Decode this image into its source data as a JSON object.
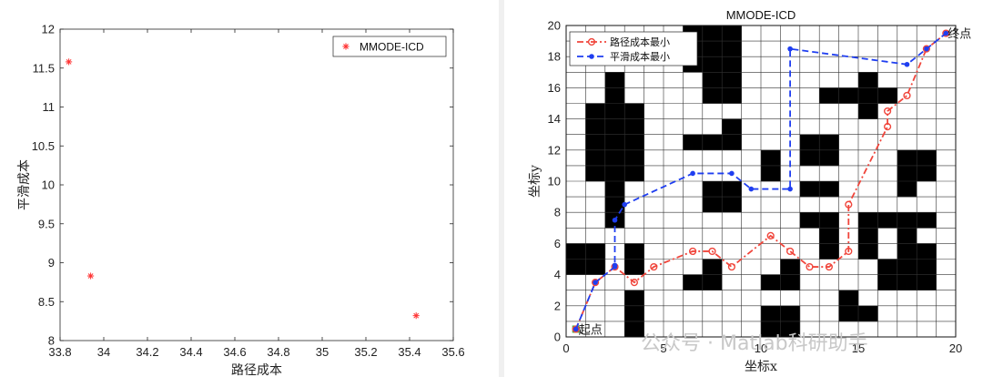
{
  "chart_data": [
    {
      "type": "scatter",
      "xlabel": "路径成本",
      "ylabel": "平滑成本",
      "xlim": [
        33.8,
        35.6
      ],
      "ylim": [
        8,
        12
      ],
      "xticks": [
        "33.8",
        "34",
        "34.2",
        "34.4",
        "34.6",
        "34.8",
        "35",
        "35.2",
        "35.4",
        "35.6"
      ],
      "yticks": [
        "8",
        "8.5",
        "9",
        "9.5",
        "10",
        "10.5",
        "11",
        "11.5",
        "12"
      ],
      "legend_position": "top-right",
      "series": [
        {
          "name": "MMODE-ICD",
          "color": "#ff3333",
          "marker": "asterisk",
          "points": [
            [
              33.84,
              11.58
            ],
            [
              33.94,
              8.83
            ],
            [
              35.43,
              8.32
            ]
          ]
        }
      ]
    },
    {
      "type": "line",
      "title": "MMODE-ICD",
      "xlabel": "坐标x",
      "ylabel": "坐标y",
      "xlim": [
        0,
        20
      ],
      "ylim": [
        0,
        20
      ],
      "xticks": [
        "0",
        "5",
        "10",
        "15",
        "20"
      ],
      "yticks": [
        "0",
        "2",
        "4",
        "6",
        "8",
        "10",
        "12",
        "14",
        "16",
        "18",
        "20"
      ],
      "grid": true,
      "legend_position": "top-left",
      "obstacles": [
        [
          0,
          4
        ],
        [
          1,
          4
        ],
        [
          0,
          5
        ],
        [
          1,
          5
        ],
        [
          1,
          10
        ],
        [
          2,
          10
        ],
        [
          3,
          10
        ],
        [
          1,
          11
        ],
        [
          2,
          11
        ],
        [
          3,
          11
        ],
        [
          1,
          12
        ],
        [
          2,
          12
        ],
        [
          3,
          12
        ],
        [
          1,
          13
        ],
        [
          2,
          13
        ],
        [
          3,
          13
        ],
        [
          1,
          14
        ],
        [
          2,
          14
        ],
        [
          3,
          14
        ],
        [
          2,
          15
        ],
        [
          2,
          16
        ],
        [
          2,
          7
        ],
        [
          2,
          8
        ],
        [
          2,
          9
        ],
        [
          3,
          4
        ],
        [
          3,
          5
        ],
        [
          3,
          0
        ],
        [
          3,
          1
        ],
        [
          3,
          2
        ],
        [
          6,
          3
        ],
        [
          7,
          3
        ],
        [
          7,
          4
        ],
        [
          6,
          12
        ],
        [
          7,
          12
        ],
        [
          8,
          12
        ],
        [
          8,
          13
        ],
        [
          6,
          17
        ],
        [
          7,
          17
        ],
        [
          8,
          17
        ],
        [
          6,
          18
        ],
        [
          7,
          18
        ],
        [
          8,
          18
        ],
        [
          6,
          19
        ],
        [
          7,
          19
        ],
        [
          8,
          19
        ],
        [
          7,
          16
        ],
        [
          8,
          16
        ],
        [
          7,
          15
        ],
        [
          8,
          15
        ],
        [
          7,
          8
        ],
        [
          8,
          8
        ],
        [
          7,
          9
        ],
        [
          8,
          9
        ],
        [
          10,
          10
        ],
        [
          10,
          11
        ],
        [
          10,
          3
        ],
        [
          11,
          3
        ],
        [
          11,
          4
        ],
        [
          10,
          0
        ],
        [
          11,
          0
        ],
        [
          10,
          1
        ],
        [
          11,
          1
        ],
        [
          12,
          11
        ],
        [
          13,
          11
        ],
        [
          12,
          12
        ],
        [
          13,
          12
        ],
        [
          12,
          9
        ],
        [
          13,
          9
        ],
        [
          12,
          7
        ],
        [
          13,
          7
        ],
        [
          13,
          6
        ],
        [
          13,
          5
        ],
        [
          13,
          15
        ],
        [
          14,
          15
        ],
        [
          15,
          15
        ],
        [
          16,
          15
        ],
        [
          15,
          16
        ],
        [
          15,
          14
        ],
        [
          14,
          1
        ],
        [
          14,
          2
        ],
        [
          15,
          1
        ],
        [
          15,
          7
        ],
        [
          16,
          7
        ],
        [
          15,
          6
        ],
        [
          15,
          5
        ],
        [
          16,
          4
        ],
        [
          17,
          4
        ],
        [
          18,
          4
        ],
        [
          16,
          3
        ],
        [
          17,
          3
        ],
        [
          18,
          3
        ],
        [
          17,
          7
        ],
        [
          18,
          7
        ],
        [
          17,
          6
        ],
        [
          17,
          9
        ],
        [
          17,
          10
        ],
        [
          18,
          10
        ],
        [
          17,
          11
        ],
        [
          18,
          11
        ],
        [
          18,
          5
        ],
        [
          17,
          5
        ]
      ],
      "series": [
        {
          "name": "路径成本最小",
          "color": "#f0453b",
          "style": "dash-dot",
          "marker": "circle",
          "x": [
            0.5,
            1.5,
            2.5,
            3.5,
            4.5,
            6.5,
            7.5,
            8.5,
            10.5,
            11.5,
            12.5,
            13.5,
            14.5,
            14.5,
            16.5,
            16.5,
            17.5,
            18.5,
            19.5
          ],
          "y": [
            0.5,
            3.5,
            4.5,
            3.5,
            4.5,
            5.5,
            5.5,
            4.5,
            6.5,
            5.5,
            4.5,
            4.5,
            5.5,
            8.5,
            13.5,
            14.5,
            15.5,
            18.5,
            19.5
          ]
        },
        {
          "name": "平滑成本最小",
          "color": "#1f3ef0",
          "style": "dash",
          "marker": "dot",
          "x": [
            0.5,
            1.5,
            2.5,
            2.5,
            2.5,
            3.0,
            6.5,
            8.5,
            9.5,
            11.5,
            11.5,
            17.5,
            18.5,
            19.5
          ],
          "y": [
            0.5,
            3.5,
            4.5,
            4.6,
            7.5,
            8.5,
            10.5,
            10.5,
            9.5,
            9.5,
            18.5,
            17.5,
            18.5,
            19.5
          ]
        }
      ],
      "annotations": [
        {
          "text": "起点",
          "x": 0.5,
          "y": 0.5
        },
        {
          "text": "终点",
          "x": 19.5,
          "y": 19.5
        }
      ],
      "start_marker": {
        "color": "#3cb043",
        "x": 0.5,
        "y": 0.5
      }
    }
  ],
  "watermark": "公众号 · Matlab科研助手"
}
